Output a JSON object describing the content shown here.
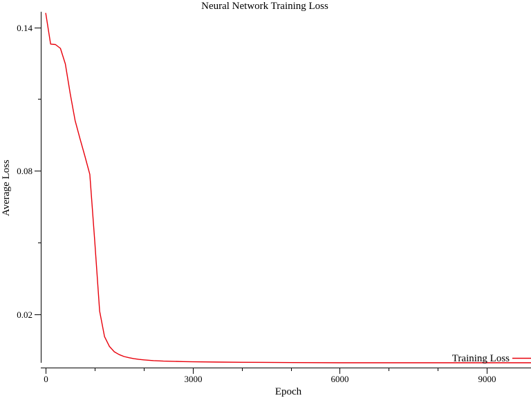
{
  "chart_data": {
    "type": "line",
    "title": "Neural Network Training Loss",
    "xlabel": "Epoch",
    "ylabel": "Average Loss",
    "xlim": [
      -100,
      9900
    ],
    "ylim": [
      -0.0001,
      0.1465
    ],
    "x_ticks": [
      0,
      3000,
      6000,
      9000
    ],
    "x_tick_labels": [
      "0",
      "3000",
      "6000",
      "9000"
    ],
    "x_minor_ticks": [
      1000,
      2000,
      4000,
      5000,
      7000,
      8000
    ],
    "y_ticks": [
      0.02,
      0.08,
      0.14
    ],
    "y_tick_labels": [
      "0.02",
      "0.08",
      "0.14"
    ],
    "y_minor_ticks": [
      0.05,
      0.11
    ],
    "grid": false,
    "legend_position": "bottom-right",
    "series": [
      {
        "name": "Training Loss",
        "color": "#e8000b",
        "x": [
          0,
          100,
          200,
          300,
          400,
          500,
          600,
          700,
          800,
          900,
          1000,
          1100,
          1200,
          1300,
          1400,
          1500,
          1600,
          1700,
          1800,
          1900,
          2000,
          2200,
          2400,
          2600,
          2800,
          3000,
          3500,
          4000,
          5000,
          6000,
          7000,
          8000,
          9000,
          9900
        ],
        "y": [
          0.146,
          0.133,
          0.1328,
          0.1312,
          0.1247,
          0.1124,
          0.1011,
          0.0935,
          0.0862,
          0.0786,
          0.0508,
          0.0215,
          0.0108,
          0.0067,
          0.0045,
          0.0033,
          0.0025,
          0.002,
          0.0016,
          0.0013,
          0.0011,
          0.0008,
          0.0006,
          0.0005,
          0.0004,
          0.0003,
          0.0002,
          0.0001,
          0.0,
          -0.0001,
          -0.0001,
          -0.0001,
          -0.0001,
          -0.0001
        ]
      }
    ]
  }
}
